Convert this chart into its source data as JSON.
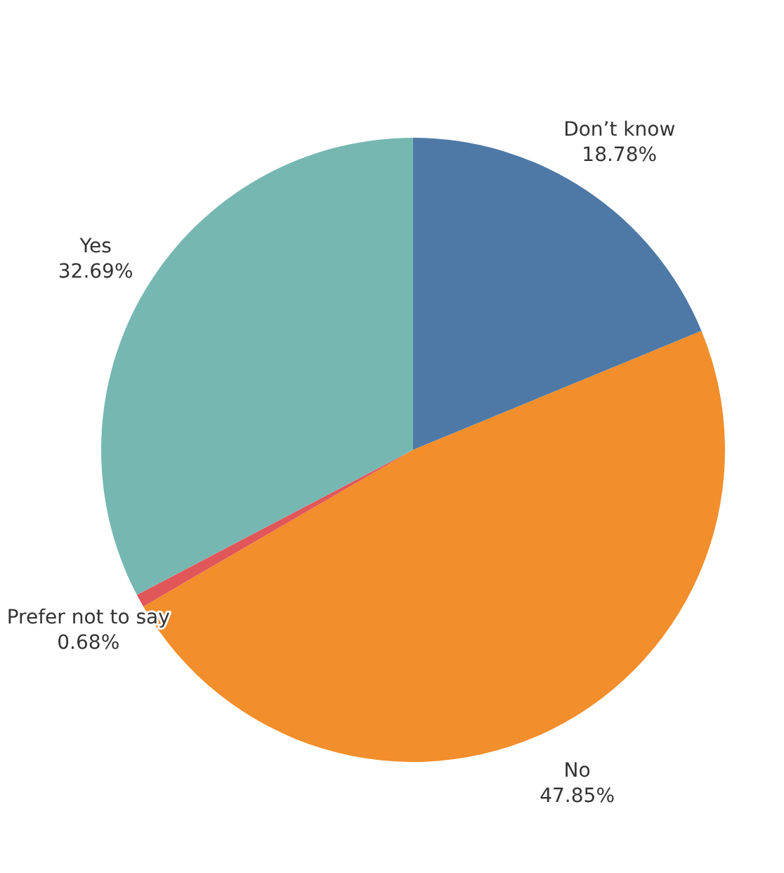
{
  "chart_data": {
    "type": "pie",
    "categories": [
      "Don’t know",
      "No",
      "Prefer not to say",
      "Yes"
    ],
    "values": [
      18.78,
      47.85,
      0.68,
      32.69
    ],
    "value_labels": [
      "18.78%",
      "47.85%",
      "0.68%",
      "32.69%"
    ],
    "colors": [
      "#4e79a7",
      "#f28e2b",
      "#e15759",
      "#76b7b2"
    ]
  }
}
